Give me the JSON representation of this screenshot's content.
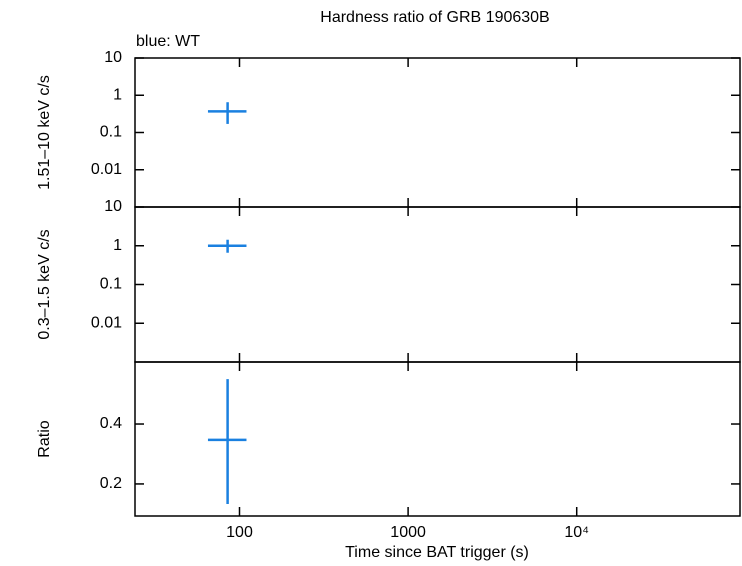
{
  "chart_data": [
    {
      "type": "errorbar",
      "title": "Hardness ratio of GRB 190630B",
      "annotation": "blue: WT",
      "ylabel": "1.51–10 keV c/s",
      "logx": true,
      "logy": true,
      "xlim": [
        24,
        93000
      ],
      "ylim": [
        0.001,
        10
      ],
      "yticks": [
        0.01,
        0.1,
        1,
        10
      ],
      "series": [
        {
          "color": "#1a80e0",
          "x": [
            85
          ],
          "x_err_minus": [
            20
          ],
          "x_err_plus": [
            25
          ],
          "values": [
            0.37
          ],
          "err_minus": [
            0.2
          ],
          "err_plus": [
            0.28
          ]
        }
      ]
    },
    {
      "type": "errorbar",
      "ylabel": "0.3–1.5 keV c/s",
      "logx": true,
      "logy": true,
      "xlim": [
        24,
        93000
      ],
      "ylim": [
        0.001,
        10
      ],
      "yticks": [
        0.01,
        0.1,
        1,
        10
      ],
      "series": [
        {
          "color": "#1a80e0",
          "x": [
            85
          ],
          "x_err_minus": [
            20
          ],
          "x_err_plus": [
            25
          ],
          "values": [
            1.0
          ],
          "err_minus": [
            0.34
          ],
          "err_plus": [
            0.43
          ]
        }
      ]
    },
    {
      "type": "errorbar",
      "ylabel": "Ratio",
      "xlabel": "Time since BAT trigger (s)",
      "logx": true,
      "logy": false,
      "xlim": [
        24,
        93000
      ],
      "ylim": [
        0.093,
        0.607
      ],
      "yticks": [
        0.2,
        0.4
      ],
      "xticks": [
        100,
        1000,
        {
          "value": 10000,
          "label": "10⁴"
        }
      ],
      "series": [
        {
          "color": "#1a80e0",
          "x": [
            85
          ],
          "x_err_minus": [
            20
          ],
          "x_err_plus": [
            25
          ],
          "values": [
            0.347
          ],
          "err_minus": [
            0.214
          ],
          "err_plus": [
            0.203
          ]
        }
      ]
    }
  ]
}
